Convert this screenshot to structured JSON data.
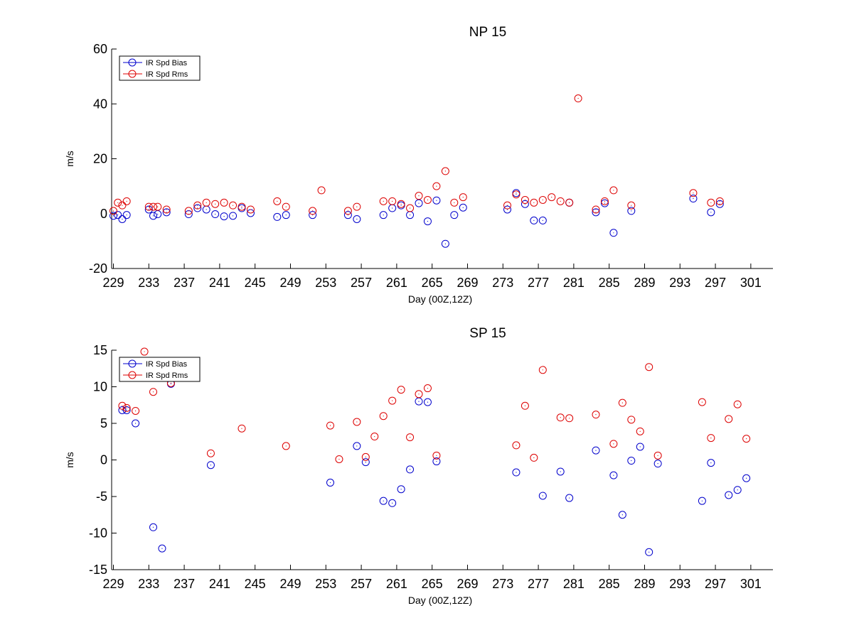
{
  "chart_data": [
    {
      "type": "scatter",
      "title": "NP 15",
      "xlabel": "Day (00Z,12Z)",
      "ylabel": "m/s",
      "xlim": [
        228.8,
        303.5
      ],
      "ylim": [
        -20,
        60
      ],
      "xticks": [
        "229",
        "233",
        "237",
        "241",
        "245",
        "249",
        "253",
        "257",
        "261",
        "265",
        "269",
        "273",
        "277",
        "281",
        "285",
        "289",
        "293",
        "297",
        "301"
      ],
      "yticks": [
        "-20",
        "0",
        "20",
        "40",
        "60"
      ],
      "grid": false,
      "legend_position": "top-left",
      "series": [
        {
          "name": "IR Spd Bias",
          "color": "#0000cc",
          "points": [
            [
              229,
              -0.8
            ],
            [
              229.5,
              -0.5
            ],
            [
              230,
              -2
            ],
            [
              230.5,
              -0.5
            ],
            [
              233,
              1.5
            ],
            [
              233.5,
              -0.8
            ],
            [
              234,
              -0.2
            ],
            [
              235,
              0.5
            ],
            [
              237.5,
              -0.2
            ],
            [
              238.5,
              2
            ],
            [
              239.5,
              1.5
            ],
            [
              240.5,
              -0.2
            ],
            [
              241.5,
              -1
            ],
            [
              242.5,
              -0.8
            ],
            [
              243.5,
              2
            ],
            [
              244.5,
              0.2
            ],
            [
              247.5,
              -1.2
            ],
            [
              248.5,
              -0.5
            ],
            [
              251.5,
              -0.5
            ],
            [
              255.5,
              -0.5
            ],
            [
              256.5,
              -2
            ],
            [
              259.5,
              -0.5
            ],
            [
              260.5,
              2
            ],
            [
              261.5,
              3
            ],
            [
              262.5,
              -0.5
            ],
            [
              263.5,
              3.8
            ],
            [
              264.5,
              -2.8
            ],
            [
              265.5,
              4.8
            ],
            [
              266.5,
              -11
            ],
            [
              267.5,
              -0.5
            ],
            [
              268.5,
              2.2
            ],
            [
              273.5,
              1.5
            ],
            [
              274.5,
              7.5
            ],
            [
              275.5,
              3.5
            ],
            [
              276.5,
              -2.5
            ],
            [
              277.5,
              -2.5
            ],
            [
              280.5,
              4
            ],
            [
              283.5,
              0.5
            ],
            [
              284.5,
              3.8
            ],
            [
              285.5,
              -7
            ],
            [
              287.5,
              1
            ],
            [
              294.5,
              5.5
            ],
            [
              296.5,
              0.5
            ],
            [
              297.5,
              3.5
            ]
          ]
        },
        {
          "name": "IR Spd Rms",
          "color": "#dd0000",
          "points": [
            [
              229,
              1
            ],
            [
              229.5,
              4
            ],
            [
              230,
              3
            ],
            [
              230.5,
              4.5
            ],
            [
              233,
              2.5
            ],
            [
              233.5,
              2.5
            ],
            [
              234,
              2.5
            ],
            [
              235,
              1.5
            ],
            [
              237.5,
              1
            ],
            [
              238.5,
              3
            ],
            [
              239.5,
              4
            ],
            [
              240.5,
              3.5
            ],
            [
              241.5,
              4
            ],
            [
              242.5,
              3
            ],
            [
              243.5,
              2.5
            ],
            [
              244.5,
              1.5
            ],
            [
              247.5,
              4.5
            ],
            [
              248.5,
              2.5
            ],
            [
              251.5,
              1
            ],
            [
              252.5,
              8.5
            ],
            [
              255.5,
              1
            ],
            [
              256.5,
              2.5
            ],
            [
              259.5,
              4.5
            ],
            [
              260.5,
              4.5
            ],
            [
              261.5,
              3.5
            ],
            [
              262.5,
              2
            ],
            [
              263.5,
              6.5
            ],
            [
              264.5,
              5
            ],
            [
              265.5,
              10
            ],
            [
              266.5,
              15.5
            ],
            [
              267.5,
              4
            ],
            [
              268.5,
              6
            ],
            [
              273.5,
              3
            ],
            [
              274.5,
              7
            ],
            [
              275.5,
              5
            ],
            [
              276.5,
              4
            ],
            [
              277.5,
              5
            ],
            [
              278.5,
              6
            ],
            [
              279.5,
              4.5
            ],
            [
              280.5,
              4
            ],
            [
              281.5,
              42
            ],
            [
              283.5,
              1.5
            ],
            [
              284.5,
              4.5
            ],
            [
              285.5,
              8.5
            ],
            [
              287.5,
              3
            ],
            [
              294.5,
              7.5
            ],
            [
              296.5,
              4
            ],
            [
              297.5,
              4.5
            ]
          ]
        }
      ]
    },
    {
      "type": "scatter",
      "title": "SP 15",
      "xlabel": "Day (00Z,12Z)",
      "ylabel": "m/s",
      "xlim": [
        228.8,
        303.5
      ],
      "ylim": [
        -15,
        15
      ],
      "xticks": [
        "229",
        "233",
        "237",
        "241",
        "245",
        "249",
        "253",
        "257",
        "261",
        "265",
        "269",
        "273",
        "277",
        "281",
        "285",
        "289",
        "293",
        "297",
        "301"
      ],
      "yticks": [
        "-15",
        "-10",
        "-5",
        "0",
        "5",
        "10",
        "15"
      ],
      "grid": false,
      "legend_position": "top-left",
      "series": [
        {
          "name": "IR Spd Bias",
          "color": "#0000cc",
          "points": [
            [
              230,
              6.8
            ],
            [
              230.5,
              6.8
            ],
            [
              231.5,
              5
            ],
            [
              233.5,
              -9.2
            ],
            [
              234.5,
              -12.1
            ],
            [
              235.5,
              10.4
            ],
            [
              240,
              -0.7
            ],
            [
              253.5,
              -3.1
            ],
            [
              256.5,
              1.9
            ],
            [
              257.5,
              -0.3
            ],
            [
              259.5,
              -5.6
            ],
            [
              260.5,
              -5.9
            ],
            [
              261.5,
              -4
            ],
            [
              262.5,
              -1.3
            ],
            [
              263.5,
              8
            ],
            [
              264.5,
              7.9
            ],
            [
              265.5,
              -0.2
            ],
            [
              274.5,
              -1.7
            ],
            [
              277.5,
              -4.9
            ],
            [
              279.5,
              -1.6
            ],
            [
              280.5,
              -5.2
            ],
            [
              283.5,
              1.3
            ],
            [
              285.5,
              -2.1
            ],
            [
              286.5,
              -7.5
            ],
            [
              287.5,
              -0.1
            ],
            [
              288.5,
              1.8
            ],
            [
              289.5,
              -12.6
            ],
            [
              290.5,
              -0.5
            ],
            [
              295.5,
              -5.6
            ],
            [
              296.5,
              -0.4
            ],
            [
              298.5,
              -4.8
            ],
            [
              299.5,
              -4.1
            ],
            [
              300.5,
              -2.5
            ]
          ]
        },
        {
          "name": "IR Spd Rms",
          "color": "#dd0000",
          "points": [
            [
              230,
              7.4
            ],
            [
              230.5,
              7.1
            ],
            [
              231.5,
              6.7
            ],
            [
              232.5,
              14.8
            ],
            [
              233.5,
              9.3
            ],
            [
              235.5,
              10.5
            ],
            [
              240,
              0.9
            ],
            [
              243.5,
              4.3
            ],
            [
              248.5,
              1.9
            ],
            [
              253.5,
              4.7
            ],
            [
              254.5,
              0.1
            ],
            [
              256.5,
              5.2
            ],
            [
              257.5,
              0.4
            ],
            [
              258.5,
              3.2
            ],
            [
              259.5,
              6
            ],
            [
              260.5,
              8.1
            ],
            [
              261.5,
              9.6
            ],
            [
              262.5,
              3.1
            ],
            [
              263.5,
              9
            ],
            [
              264.5,
              9.8
            ],
            [
              265.5,
              0.6
            ],
            [
              274.5,
              2
            ],
            [
              275.5,
              7.4
            ],
            [
              276.5,
              0.3
            ],
            [
              277.5,
              12.3
            ],
            [
              279.5,
              5.8
            ],
            [
              280.5,
              5.7
            ],
            [
              283.5,
              6.2
            ],
            [
              285.5,
              2.2
            ],
            [
              286.5,
              7.8
            ],
            [
              287.5,
              5.5
            ],
            [
              288.5,
              3.9
            ],
            [
              289.5,
              12.7
            ],
            [
              290.5,
              0.6
            ],
            [
              295.5,
              7.9
            ],
            [
              296.5,
              3
            ],
            [
              298.5,
              5.6
            ],
            [
              299.5,
              7.6
            ],
            [
              300.5,
              2.9
            ]
          ]
        }
      ]
    }
  ]
}
